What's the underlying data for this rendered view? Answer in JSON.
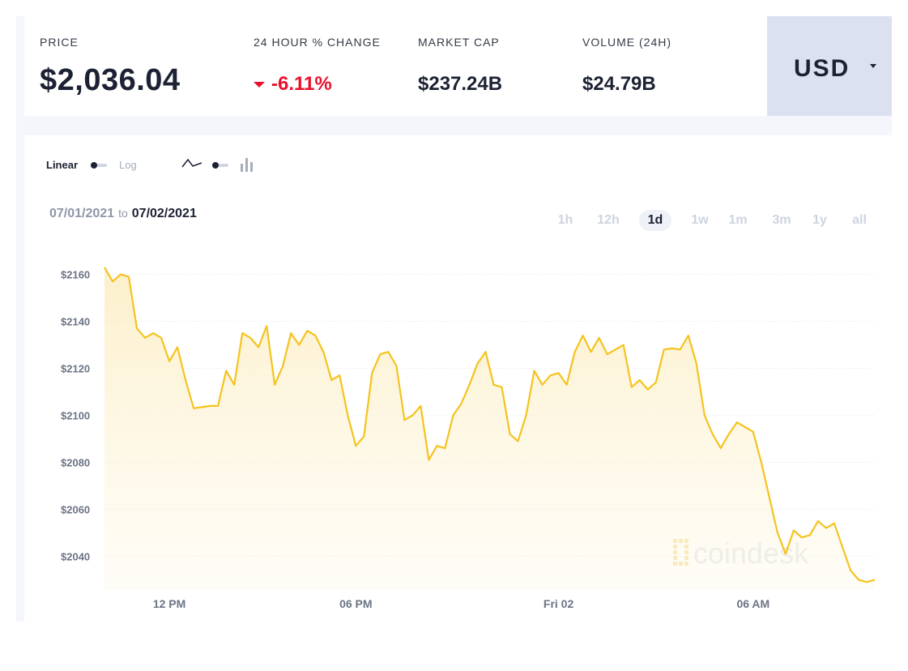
{
  "stats": {
    "price": {
      "label": "PRICE",
      "value": "$2,036.04"
    },
    "change": {
      "label": "24 HOUR % CHANGE",
      "value": "-6.11%",
      "direction": "down",
      "color": "#e8112d"
    },
    "market_cap": {
      "label": "MARKET CAP",
      "value": "$237.24B"
    },
    "volume": {
      "label": "VOLUME (24H)",
      "value": "$24.79B"
    }
  },
  "currency": {
    "selected": "USD",
    "icon": "caret-down-icon"
  },
  "controls": {
    "scale_linear": "Linear",
    "scale_log": "Log",
    "line_chart_icon": "line-chart-icon",
    "bar_chart_icon": "bar-chart-icon"
  },
  "date_range": {
    "from": "07/01/2021",
    "to_word": "to",
    "to": "07/02/2021"
  },
  "ranges": [
    {
      "label": "1h",
      "active": false
    },
    {
      "label": "12h",
      "active": false
    },
    {
      "label": "1d",
      "active": true
    },
    {
      "label": "1w",
      "active": false
    },
    {
      "label": "1m",
      "active": false
    },
    {
      "label": "3m",
      "active": false
    },
    {
      "label": "1y",
      "active": false
    },
    {
      "label": "all",
      "active": false
    }
  ],
  "watermark": "coindesk",
  "colors": {
    "line": "#f5c31e",
    "accent_red": "#e8112d",
    "dark": "#1c2233"
  },
  "chart_data": {
    "type": "area",
    "title": "",
    "xlabel": "",
    "ylabel": "",
    "ylim": [
      2026,
      2164
    ],
    "y_ticks": [
      2040,
      2060,
      2080,
      2100,
      2120,
      2140,
      2160
    ],
    "y_tick_labels": [
      "$2040",
      "$2060",
      "$2080",
      "$2100",
      "$2120",
      "$2140",
      "$2160"
    ],
    "x_range": [
      0,
      95
    ],
    "x_ticks": [
      {
        "x": 8,
        "label": "12 PM"
      },
      {
        "x": 31,
        "label": "06 PM"
      },
      {
        "x": 56,
        "label": "Fri 02"
      },
      {
        "x": 80,
        "label": "06 AM"
      }
    ],
    "grid": true,
    "legend": "none",
    "series": [
      {
        "values": [
          2163,
          2157,
          2160,
          2159,
          2137,
          2133,
          2135,
          2133,
          2123,
          2129,
          2115,
          2103,
          2103.5,
          2104,
          2104,
          2119,
          2113,
          2135,
          2133,
          2129,
          2138,
          2113,
          2121,
          2135,
          2130,
          2136,
          2134,
          2127,
          2115,
          2117,
          2100,
          2087,
          2091,
          2118,
          2126,
          2127,
          2121,
          2098,
          2100,
          2104,
          2081,
          2087,
          2086,
          2100,
          2105,
          2113,
          2122,
          2127,
          2113,
          2112,
          2092,
          2089,
          2100,
          2119,
          2113,
          2117,
          2118,
          2113,
          2127,
          2134,
          2127,
          2133,
          2126,
          2128,
          2130,
          2112,
          2115,
          2111,
          2114,
          2128,
          2128.5,
          2128,
          2134,
          2122,
          2100,
          2092,
          2086,
          2092,
          2097,
          2095,
          2093,
          2080,
          2065,
          2050,
          2041,
          2051,
          2048,
          2049,
          2055,
          2052,
          2054,
          2044,
          2034,
          2030,
          2029,
          2030
        ]
      }
    ]
  }
}
